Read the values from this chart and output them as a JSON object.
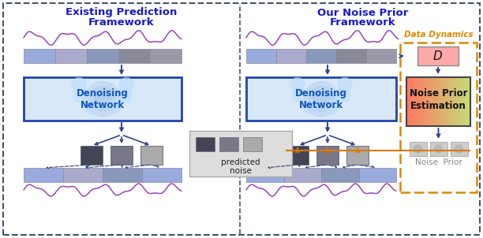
{
  "fig_width": 6.12,
  "fig_height": 3.02,
  "dpi": 100,
  "bg_color": "#ffffff",
  "left_title_line1": "Existing Prediction",
  "left_title_line2": "Framework",
  "right_title_line1": "Our Noise Prior",
  "right_title_line2": "Framework",
  "title_color": "#1a1acc",
  "title_fontsize": 9.5,
  "wave_color": "#9944bb",
  "dn_box_bg": "#d8e8f8",
  "dn_box_border": "#2244aa",
  "dn_text_color": "#1155bb",
  "orange_border": "#dd8800",
  "arrow_blue": "#334488",
  "arrow_orange": "#dd7700",
  "gray_dark": "#444455",
  "gray_mid": "#777788",
  "gray_light": "#aaaaaa",
  "block_colors_in": [
    "#99aadd",
    "#aaaacc",
    "#8899bb",
    "#888899",
    "#9999aa"
  ],
  "block_colors_out": [
    "#99aadd",
    "#aaaacc",
    "#8899bb",
    "#99aadd"
  ],
  "pn_bg": "#cccccc",
  "pn_border": "#aaaaaa",
  "np_block_color": "#bbbbcc",
  "D_color": "#ffaaaa"
}
